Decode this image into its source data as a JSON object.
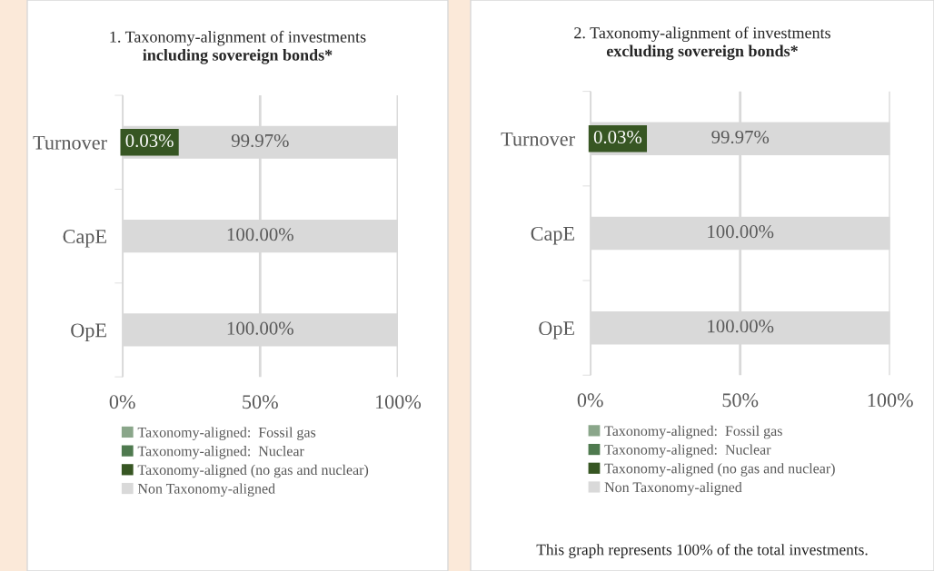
{
  "chart_data": [
    {
      "type": "bar",
      "orientation": "horizontal",
      "stacked": true,
      "title": "1. Taxonomy-alignment of investments",
      "subtitle": "including sovereign bonds*",
      "categories": [
        "Turnover",
        "CapE",
        "OpE"
      ],
      "series": [
        {
          "name": "Taxonomy-aligned:  Fossil gas",
          "color": "#8aa68a",
          "values": [
            0,
            0,
            0
          ]
        },
        {
          "name": "Taxonomy-aligned:  Nuclear",
          "color": "#4f7a4f",
          "values": [
            0,
            0,
            0
          ]
        },
        {
          "name": "Taxonomy-aligned (no gas and nuclear)",
          "color": "#375623",
          "values": [
            0.03,
            0,
            0
          ],
          "value_labels": [
            "0.03%",
            null,
            null
          ]
        },
        {
          "name": "Non Taxonomy-aligned",
          "color": "#d9d9d9",
          "values": [
            99.97,
            100,
            100
          ],
          "value_labels": [
            "99.97%",
            "100.00%",
            "100.00%"
          ]
        }
      ],
      "xlim": [
        0,
        100
      ],
      "xticks": [
        {
          "value": 0,
          "label": "0%"
        },
        {
          "value": 50,
          "label": "50%"
        },
        {
          "value": 100,
          "label": "100%"
        }
      ],
      "grid": "x",
      "legend": "bottom"
    },
    {
      "type": "bar",
      "orientation": "horizontal",
      "stacked": true,
      "title": "2. Taxonomy-alignment of investments",
      "subtitle": "excluding sovereign bonds*",
      "categories": [
        "Turnover",
        "CapE",
        "OpE"
      ],
      "series": [
        {
          "name": "Taxonomy-aligned:  Fossil gas",
          "color": "#8aa68a",
          "values": [
            0,
            0,
            0
          ]
        },
        {
          "name": "Taxonomy-aligned:  Nuclear",
          "color": "#4f7a4f",
          "values": [
            0,
            0,
            0
          ]
        },
        {
          "name": "Taxonomy-aligned (no gas and nuclear)",
          "color": "#375623",
          "values": [
            0.03,
            0,
            0
          ],
          "value_labels": [
            "0.03%",
            null,
            null
          ]
        },
        {
          "name": "Non Taxonomy-aligned",
          "color": "#d9d9d9",
          "values": [
            99.97,
            100,
            100
          ],
          "value_labels": [
            "99.97%",
            "100.00%",
            "100.00%"
          ]
        }
      ],
      "xlim": [
        0,
        100
      ],
      "xticks": [
        {
          "value": 0,
          "label": "0%"
        },
        {
          "value": 50,
          "label": "50%"
        },
        {
          "value": 100,
          "label": "100%"
        }
      ],
      "grid": "x",
      "legend": "bottom",
      "annotations": [
        "This graph represents 100% of the total investments."
      ]
    }
  ]
}
